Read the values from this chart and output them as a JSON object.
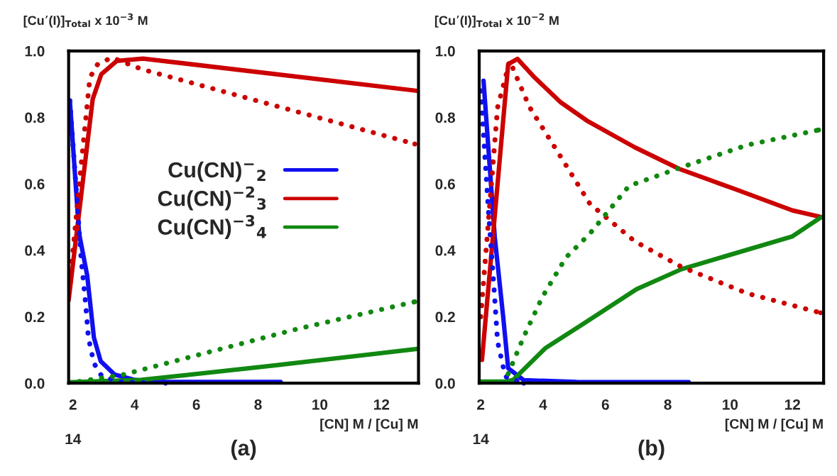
{
  "chart_data": [
    {
      "type": "line",
      "title": "(a)",
      "xlabel": "[CN] M / [Cu] M",
      "ylabel": "[Cu’(I)]$_{Total}$ x 10$^{−3}$ M",
      "annotations": [
        "14"
      ],
      "xlim": [
        1.86,
        13.2
      ],
      "xticks": [
        2,
        4,
        6,
        8,
        10,
        12
      ],
      "ylim": [
        0,
        1
      ],
      "yticks": [
        {
          "value": 0,
          "label": "0.0"
        },
        {
          "value": 0.2,
          "label": "0.2"
        },
        {
          "value": 0.4,
          "label": "0.4"
        },
        {
          "value": 0.6,
          "label": "0.6"
        },
        {
          "value": 0.8,
          "label": "0.8"
        },
        {
          "value": 1,
          "label": "1.0"
        }
      ],
      "legend": "center",
      "series": [
        {
          "name": "Cu(CN)$^{−}$$_{2}$",
          "color": "#1010f0",
          "line_style": "solid",
          "x": [
            1.9,
            2.2,
            2.46,
            2.68,
            2.9,
            3.35,
            4.04,
            5.0,
            8.73
          ],
          "values": [
            0.85,
            0.45,
            0.325,
            0.137,
            0.066,
            0.026,
            0.009,
            0.004,
            0.004
          ]
        },
        {
          "name": "Cu(CN)$^{−2}$$_{3}$",
          "color": "#cc0000",
          "line_style": "solid",
          "x": [
            1.86,
            2.64,
            2.92,
            3.42,
            4.27,
            13.15
          ],
          "values": [
            0.25,
            0.855,
            0.93,
            0.97,
            0.977,
            0.88
          ]
        },
        {
          "name": "Cu(CN)$^{−3}$$_{4}$",
          "color": "#118811",
          "line_style": "solid",
          "x": [
            1.86,
            4.23,
            8.48,
            13.15
          ],
          "values": [
            0.003,
            0.01,
            0.053,
            0.103
          ]
        },
        {
          "color": "#1010f0",
          "line_style": "dotted",
          "x": [
            1.9,
            2.27,
            2.41,
            2.5,
            2.68,
            2.94,
            3.6,
            5.0
          ],
          "values": [
            0.85,
            0.37,
            0.24,
            0.137,
            0.06,
            0.02,
            0.003,
            0.0
          ]
        },
        {
          "color": "#cc0000",
          "line_style": "dotted",
          "x": [
            1.9,
            2.27,
            2.55,
            2.8,
            3.26,
            4.23,
            13.08
          ],
          "values": [
            0.3,
            0.66,
            0.92,
            0.96,
            0.98,
            0.945,
            0.72
          ]
        },
        {
          "color": "#118811",
          "line_style": "dotted",
          "x": [
            1.86,
            3.6,
            5.81,
            9.35,
            13.08
          ],
          "values": [
            0.0,
            0.025,
            0.079,
            0.165,
            0.245
          ]
        }
      ]
    },
    {
      "type": "line",
      "title": "(b)",
      "xlabel": "[CN] M / [Cu] M",
      "ylabel": "[Cu’(I)]$_{Total}$ x 10$^{−2}$ M",
      "annotations": [
        "14"
      ],
      "xlim": [
        1.95,
        13.0
      ],
      "xticks": [
        2,
        4,
        6,
        8,
        10,
        12
      ],
      "ylim": [
        0,
        1
      ],
      "yticks": [
        {
          "value": 0,
          "label": "0.0"
        },
        {
          "value": 0.2,
          "label": "0.2"
        },
        {
          "value": 0.4,
          "label": "0.4"
        },
        {
          "value": 0.6,
          "label": "0.6"
        },
        {
          "value": 0.8,
          "label": "0.8"
        },
        {
          "value": 1,
          "label": "1.0"
        }
      ],
      "series": [
        {
          "color": "#1010f0",
          "line_style": "solid",
          "x": [
            2.09,
            2.45,
            2.72,
            2.88,
            3.38,
            5.07,
            8.67
          ],
          "values": [
            0.91,
            0.44,
            0.2,
            0.045,
            0.009,
            0.004,
            0.003
          ]
        },
        {
          "color": "#cc0000",
          "line_style": "solid",
          "x": [
            2.04,
            2.88,
            3.18,
            3.73,
            4.57,
            5.41,
            6.94,
            8.37,
            10.13,
            12.0,
            12.93
          ],
          "values": [
            0.07,
            0.96,
            0.976,
            0.92,
            0.845,
            0.79,
            0.71,
            0.645,
            0.585,
            0.52,
            0.5
          ]
        },
        {
          "color": "#118811",
          "line_style": "solid",
          "x": [
            2.0,
            2.79,
            3.04,
            4.07,
            5.25,
            7.0,
            8.44,
            12.0,
            12.93
          ],
          "values": [
            0.005,
            0.005,
            0.01,
            0.105,
            0.176,
            0.283,
            0.343,
            0.442,
            0.5
          ]
        },
        {
          "color": "#1010f0",
          "line_style": "dotted",
          "x": [
            2.0,
            2.25,
            2.43,
            2.54,
            2.79,
            3.38
          ],
          "values": [
            0.88,
            0.515,
            0.28,
            0.125,
            0.02,
            0.0
          ]
        },
        {
          "color": "#cc0000",
          "line_style": "dotted",
          "x": [
            2.0,
            2.54,
            2.93,
            3.57,
            4.41,
            5.5,
            6.94,
            8.44,
            10.56,
            12.9
          ],
          "values": [
            0.2,
            0.83,
            0.97,
            0.83,
            0.705,
            0.54,
            0.427,
            0.35,
            0.27,
            0.212
          ]
        },
        {
          "color": "#118811",
          "line_style": "dotted",
          "x": [
            2.88,
            3.38,
            3.98,
            4.73,
            5.5,
            6.76,
            8.44,
            10.56,
            12.84
          ],
          "values": [
            0.028,
            0.14,
            0.26,
            0.378,
            0.45,
            0.594,
            0.65,
            0.717,
            0.762
          ]
        }
      ]
    }
  ]
}
